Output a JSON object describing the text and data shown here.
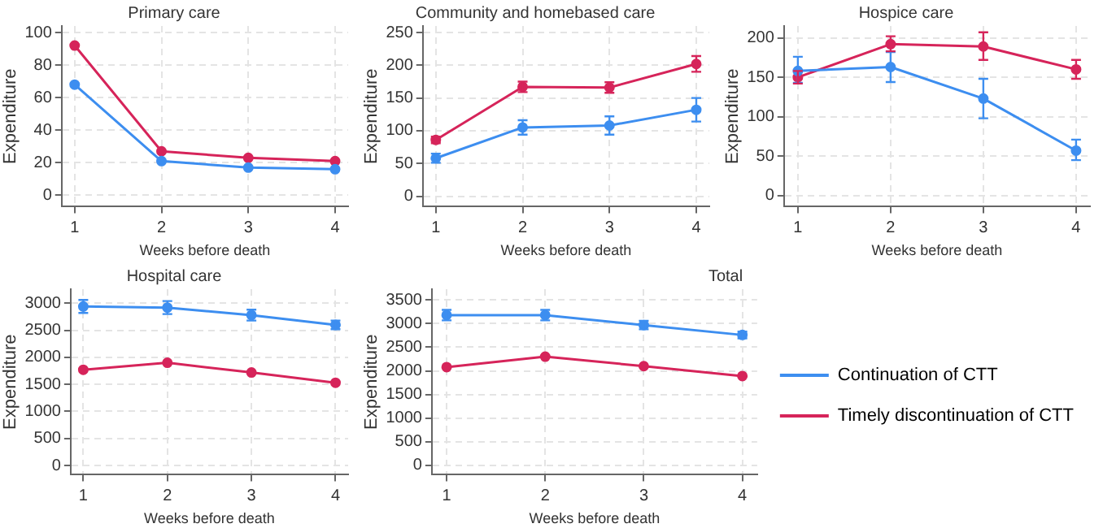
{
  "chart_data": [
    {
      "type": "line",
      "title": "Primary care",
      "xlabel": "Weeks before death",
      "ylabel": "Expenditure",
      "x": [
        1,
        2,
        3,
        4
      ],
      "xlim": [
        0.85,
        4.15
      ],
      "xticks": [
        1,
        2,
        3,
        4
      ],
      "ylim": [
        -7,
        104
      ],
      "yticks": [
        0,
        20,
        40,
        60,
        80,
        100
      ],
      "grid": true,
      "legend": false,
      "marker": "circle",
      "series": [
        {
          "color": "#3d8ef0",
          "values": [
            68,
            21,
            17,
            16
          ]
        },
        {
          "color": "#d6245a",
          "values": [
            92,
            27,
            23,
            21
          ]
        }
      ]
    },
    {
      "type": "line",
      "title": "Community and homebased care",
      "xlabel": "Weeks before death",
      "ylabel": "Expenditure",
      "x": [
        1,
        2,
        3,
        4
      ],
      "xlim": [
        0.85,
        4.15
      ],
      "xticks": [
        1,
        2,
        3,
        4
      ],
      "ylim": [
        -16,
        260
      ],
      "yticks": [
        0,
        50,
        100,
        150,
        200,
        250
      ],
      "grid": true,
      "legend": false,
      "marker": "circle",
      "series": [
        {
          "color": "#3d8ef0",
          "values": [
            58,
            105,
            108,
            132
          ],
          "errors": [
            7,
            11,
            14,
            18
          ]
        },
        {
          "color": "#d6245a",
          "values": [
            86,
            167,
            166,
            202
          ],
          "errors": [
            5,
            8,
            8,
            12
          ]
        }
      ]
    },
    {
      "type": "line",
      "title": "Hospice care",
      "xlabel": "Weeks before death",
      "ylabel": "Expenditure",
      "x": [
        1,
        2,
        3,
        4
      ],
      "xlim": [
        0.85,
        4.15
      ],
      "xticks": [
        1,
        2,
        3,
        4
      ],
      "ylim": [
        -14,
        215
      ],
      "yticks": [
        0,
        50,
        100,
        150,
        200
      ],
      "grid": true,
      "legend": false,
      "marker": "circle",
      "series": [
        {
          "color": "#3d8ef0",
          "values": [
            158,
            163,
            123,
            57
          ],
          "errors": [
            [
              143,
              176
            ],
            [
              144,
              182
            ],
            [
              98,
              148
            ],
            [
              45,
              71
            ]
          ]
        },
        {
          "color": "#d6245a",
          "values": [
            150,
            192,
            189,
            160
          ],
          "errors": [
            [
              142,
              158
            ],
            [
              183,
              202
            ],
            [
              172,
              207
            ],
            [
              148,
              172
            ]
          ]
        }
      ]
    },
    {
      "type": "line",
      "title": "Hospital care",
      "xlabel": "Weeks before death",
      "ylabel": "Expenditure",
      "x": [
        1,
        2,
        3,
        4
      ],
      "xlim": [
        0.85,
        4.15
      ],
      "xticks": [
        1,
        2,
        3,
        4
      ],
      "ylim": [
        -170,
        3260
      ],
      "yticks": [
        0,
        500,
        1000,
        1500,
        2000,
        2500,
        3000
      ],
      "grid": true,
      "legend": false,
      "marker": "circle",
      "series": [
        {
          "color": "#3d8ef0",
          "values": [
            2940,
            2920,
            2780,
            2600
          ],
          "errors": [
            120,
            120,
            100,
            80
          ]
        },
        {
          "color": "#d6245a",
          "values": [
            1770,
            1900,
            1720,
            1530
          ]
        }
      ]
    },
    {
      "type": "line",
      "title": "Total",
      "xlabel": "Weeks before death",
      "ylabel": "Expenditure",
      "x": [
        1,
        2,
        3,
        4
      ],
      "xlim": [
        0.85,
        4.15
      ],
      "xticks": [
        1,
        2,
        3,
        4
      ],
      "ylim": [
        -200,
        3730
      ],
      "yticks": [
        0,
        500,
        1000,
        1500,
        2000,
        2500,
        3000,
        3500
      ],
      "grid": true,
      "legend": "right",
      "marker": "circle",
      "series": [
        {
          "name": "Continuation of CTT",
          "color": "#3d8ef0",
          "values": [
            3180,
            3180,
            2970,
            2760
          ],
          "errors": [
            110,
            110,
            90,
            70
          ]
        },
        {
          "name": "Timely discontinuation of CTT",
          "color": "#d6245a",
          "values": [
            2080,
            2300,
            2100,
            1890
          ]
        }
      ]
    }
  ]
}
